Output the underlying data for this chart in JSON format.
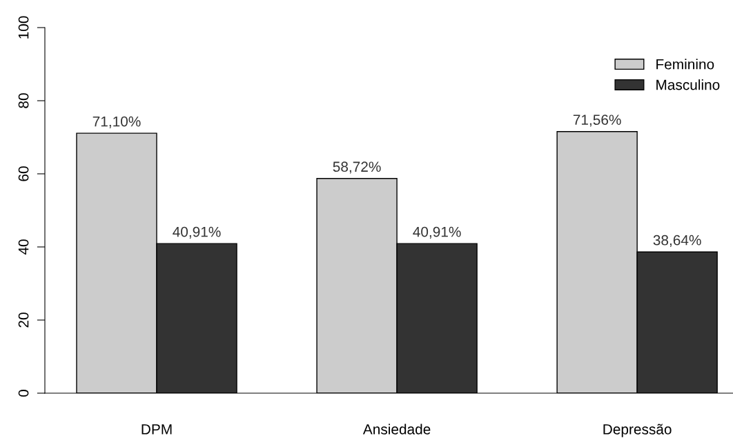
{
  "chart_data": {
    "type": "bar",
    "categories": [
      "DPM",
      "Ansiedade",
      "Depressão"
    ],
    "series": [
      {
        "name": "Feminino",
        "color": "#cccccc",
        "values": [
          71.1,
          58.72,
          71.56
        ],
        "value_labels": [
          "71,10%",
          "58,72%",
          "71,56%"
        ]
      },
      {
        "name": "Masculino",
        "color": "#333333",
        "values": [
          40.91,
          40.91,
          38.64
        ],
        "value_labels": [
          "40,91%",
          "40,91%",
          "38,64%"
        ]
      }
    ],
    "ylim": [
      0,
      100
    ],
    "yticks": [
      0,
      20,
      40,
      60,
      80,
      100
    ],
    "legend": "top right",
    "grid": false
  }
}
